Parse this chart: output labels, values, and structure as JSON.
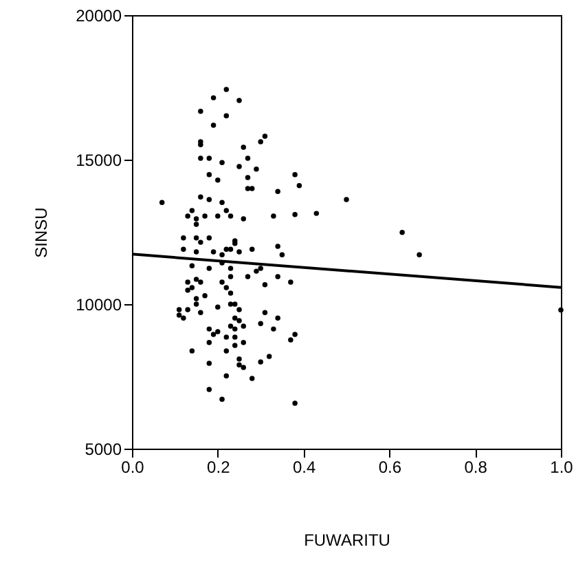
{
  "chart_data": {
    "type": "scatter",
    "xlabel": "FUWARITU",
    "ylabel": "SINSU",
    "xlim": [
      0,
      1
    ],
    "ylim": [
      5000,
      20000
    ],
    "xticks": [
      {
        "value": 0,
        "label": "0.0"
      },
      0.2,
      0.4,
      0.6,
      0.8,
      {
        "value": 1,
        "label": "1.0"
      }
    ],
    "yticks": [
      5000,
      10000,
      15000,
      20000
    ],
    "grid": false,
    "series": [
      {
        "marker": "circle",
        "color": "#000000",
        "x": [
          0.22,
          0.19,
          0.25,
          0.16,
          0.22,
          0.19,
          0.31,
          0.3,
          0.16,
          0.16,
          0.26,
          0.16,
          0.18,
          0.21,
          0.27,
          0.25,
          0.29,
          0.18,
          0.2,
          0.27,
          0.38,
          0.39,
          0.27,
          0.28,
          0.34,
          0.07,
          0.16,
          0.18,
          0.21,
          0.14,
          0.22,
          0.13,
          0.15,
          0.17,
          0.2,
          0.23,
          0.26,
          0.33,
          0.38,
          0.43,
          0.15,
          0.12,
          0.15,
          0.18,
          0.24,
          0.16,
          0.34,
          0.24,
          0.12,
          0.15,
          0.19,
          0.21,
          0.22,
          0.23,
          0.25,
          0.28,
          0.35,
          0.14,
          0.18,
          0.21,
          0.23,
          0.3,
          0.29,
          0.23,
          0.27,
          0.34,
          0.37,
          0.13,
          0.15,
          0.16,
          0.21,
          0.22,
          0.31,
          0.14,
          0.13,
          0.23,
          0.17,
          0.15,
          0.15,
          0.23,
          0.24,
          0.11,
          0.13,
          0.2,
          0.25,
          0.11,
          0.12,
          0.16,
          0.24,
          0.25,
          0.31,
          0.34,
          0.23,
          0.26,
          0.3,
          0.33,
          0.24,
          0.18,
          0.19,
          0.2,
          0.22,
          0.24,
          0.38,
          0.37,
          0.18,
          0.24,
          0.26,
          0.14,
          0.22,
          0.25,
          0.32,
          0.3,
          0.18,
          0.25,
          0.26,
          0.22,
          0.28,
          0.18,
          0.21,
          0.38,
          0.5,
          0.63,
          0.67,
          1.0
        ],
        "values": [
          17430,
          17140,
          17050,
          16670,
          16520,
          16190,
          15810,
          15620,
          15620,
          15520,
          15430,
          15050,
          15050,
          14900,
          15050,
          14760,
          14670,
          14480,
          14290,
          14380,
          14480,
          14100,
          14000,
          14000,
          13900,
          13520,
          13710,
          13620,
          13520,
          13240,
          13240,
          13050,
          12950,
          13050,
          13050,
          13050,
          12950,
          13050,
          13100,
          13140,
          12760,
          12290,
          12290,
          12290,
          12190,
          12140,
          12000,
          12100,
          11900,
          11810,
          11810,
          11710,
          11900,
          11900,
          11810,
          11900,
          11710,
          11330,
          11240,
          11430,
          11240,
          11240,
          11140,
          10950,
          10950,
          10950,
          10760,
          10760,
          10860,
          10760,
          10760,
          10570,
          10670,
          10570,
          10480,
          10380,
          10290,
          10190,
          10000,
          10000,
          10000,
          9810,
          9810,
          9900,
          9810,
          9620,
          9520,
          9710,
          9520,
          9430,
          9710,
          9520,
          9240,
          9240,
          9330,
          9140,
          9140,
          9140,
          8950,
          9050,
          8860,
          8860,
          8950,
          8760,
          8670,
          8570,
          8670,
          8380,
          8380,
          8100,
          8190,
          8000,
          7950,
          7900,
          7810,
          7520,
          7430,
          7050,
          6710,
          6570,
          13620,
          12480,
          11710,
          9800
        ]
      },
      {
        "type": "line",
        "color": "#000000",
        "x": [
          0,
          1
        ],
        "values": [
          11730,
          10580
        ]
      }
    ]
  }
}
